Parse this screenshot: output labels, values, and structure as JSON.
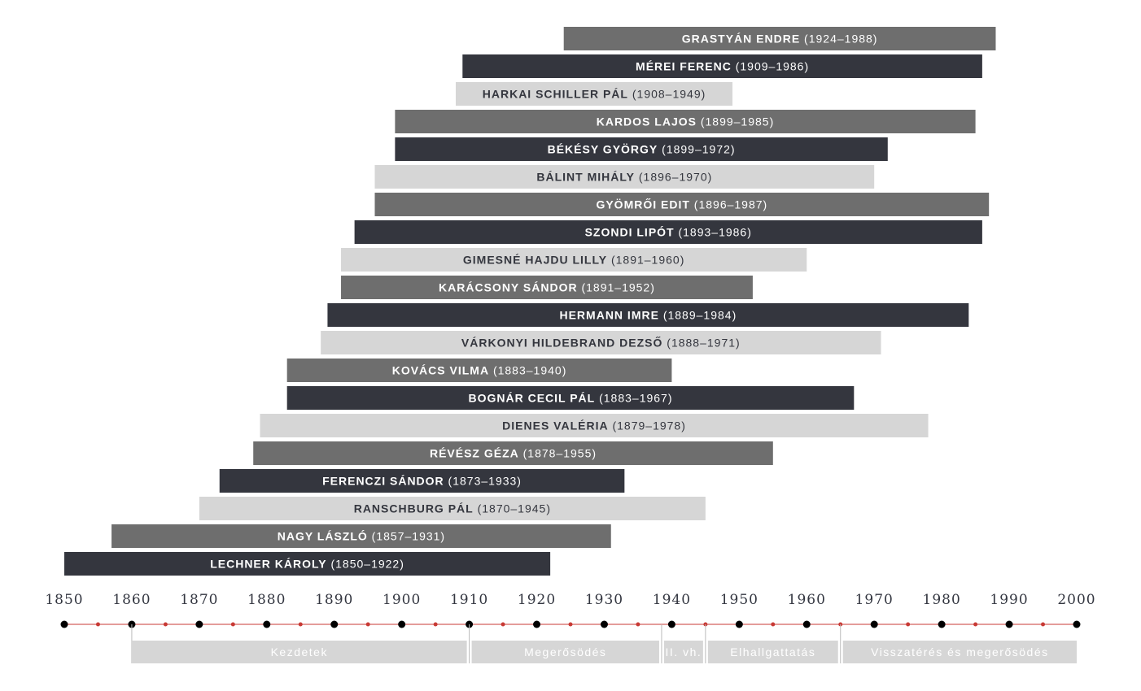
{
  "chart_data": {
    "type": "bar",
    "orientation": "horizontal-timeline",
    "title": "",
    "xlim": [
      1850,
      2000
    ],
    "x_ticks": [
      "1850",
      "1860",
      "1870",
      "1880",
      "1890",
      "1900",
      "1910",
      "1920",
      "1930",
      "1940",
      "1950",
      "1960",
      "1970",
      "1980",
      "1990",
      "2000"
    ],
    "grid": false,
    "people": [
      {
        "name": "GRASTYÁN ENDRE",
        "years": "(1924–1988)",
        "start": 1924,
        "end": 1988,
        "tone": "mid"
      },
      {
        "name": "MÉREI FERENC",
        "years": "(1909–1986)",
        "start": 1909,
        "end": 1986,
        "tone": "dark"
      },
      {
        "name": "HARKAI SCHILLER PÁL",
        "years": "(1908–1949)",
        "start": 1908,
        "end": 1949,
        "tone": "light"
      },
      {
        "name": "KARDOS LAJOS",
        "years": "(1899–1985)",
        "start": 1899,
        "end": 1985,
        "tone": "mid"
      },
      {
        "name": "BÉKÉSY GYÖRGY",
        "years": "(1899–1972)",
        "start": 1899,
        "end": 1972,
        "tone": "dark"
      },
      {
        "name": "BÁLINT MIHÁLY",
        "years": "(1896–1970)",
        "start": 1896,
        "end": 1970,
        "tone": "light"
      },
      {
        "name": "GYÖMRŐI EDIT",
        "years": "(1896–1987)",
        "start": 1896,
        "end": 1987,
        "tone": "mid"
      },
      {
        "name": "SZONDI LIPÓT",
        "years": "(1893–1986)",
        "start": 1893,
        "end": 1986,
        "tone": "dark"
      },
      {
        "name": "GIMESNÉ HAJDU LILLY",
        "years": "(1891–1960)",
        "start": 1891,
        "end": 1960,
        "tone": "light"
      },
      {
        "name": "KARÁCSONY SÁNDOR",
        "years": "(1891–1952)",
        "start": 1891,
        "end": 1952,
        "tone": "mid"
      },
      {
        "name": "HERMANN IMRE",
        "years": "(1889–1984)",
        "start": 1889,
        "end": 1984,
        "tone": "dark"
      },
      {
        "name": "VÁRKONYI HILDEBRAND DEZSŐ",
        "years": "(1888–1971)",
        "start": 1888,
        "end": 1971,
        "tone": "light"
      },
      {
        "name": "KOVÁCS VILMA",
        "years": "(1883–1940)",
        "start": 1883,
        "end": 1940,
        "tone": "mid"
      },
      {
        "name": "BOGNÁR CECIL PÁL",
        "years": "(1883–1967)",
        "start": 1883,
        "end": 1967,
        "tone": "dark"
      },
      {
        "name": "DIENES VALÉRIA",
        "years": "(1879–1978)",
        "start": 1879,
        "end": 1978,
        "tone": "light"
      },
      {
        "name": "RÉVÉSZ GÉZA",
        "years": "(1878–1955)",
        "start": 1878,
        "end": 1955,
        "tone": "mid"
      },
      {
        "name": "FERENCZI SÁNDOR",
        "years": "(1873–1933)",
        "start": 1873,
        "end": 1933,
        "tone": "dark"
      },
      {
        "name": "RANSCHBURG PÁL",
        "years": "(1870–1945)",
        "start": 1870,
        "end": 1945,
        "tone": "light"
      },
      {
        "name": "NAGY LÁSZLÓ",
        "years": "(1857–1931)",
        "start": 1857,
        "end": 1931,
        "tone": "mid"
      },
      {
        "name": "LECHNER KÁROLY",
        "years": "(1850–1922)",
        "start": 1850,
        "end": 1922,
        "tone": "dark"
      }
    ],
    "periods": [
      {
        "label": "Kezdetek",
        "start": 1860,
        "end": 1910
      },
      {
        "label": "Megerősödés",
        "start": 1910,
        "end": 1938.5
      },
      {
        "label": "II. vh.",
        "start": 1938.5,
        "end": 1945
      },
      {
        "label": "Elhallgattatás",
        "start": 1945,
        "end": 1965
      },
      {
        "label": "Visszatérés és megerősödés",
        "start": 1965,
        "end": 2000
      }
    ]
  },
  "colors": {
    "dark": "#34363e",
    "mid": "#6e6e6e",
    "light": "#d6d6d6",
    "text_on_light": "#34363e",
    "text_on_dark": "#ffffff",
    "axis_line": "#c83a35",
    "major_dot": "#000000",
    "minor_dot": "#c83a35",
    "period_fill": "#d6d6d6"
  }
}
